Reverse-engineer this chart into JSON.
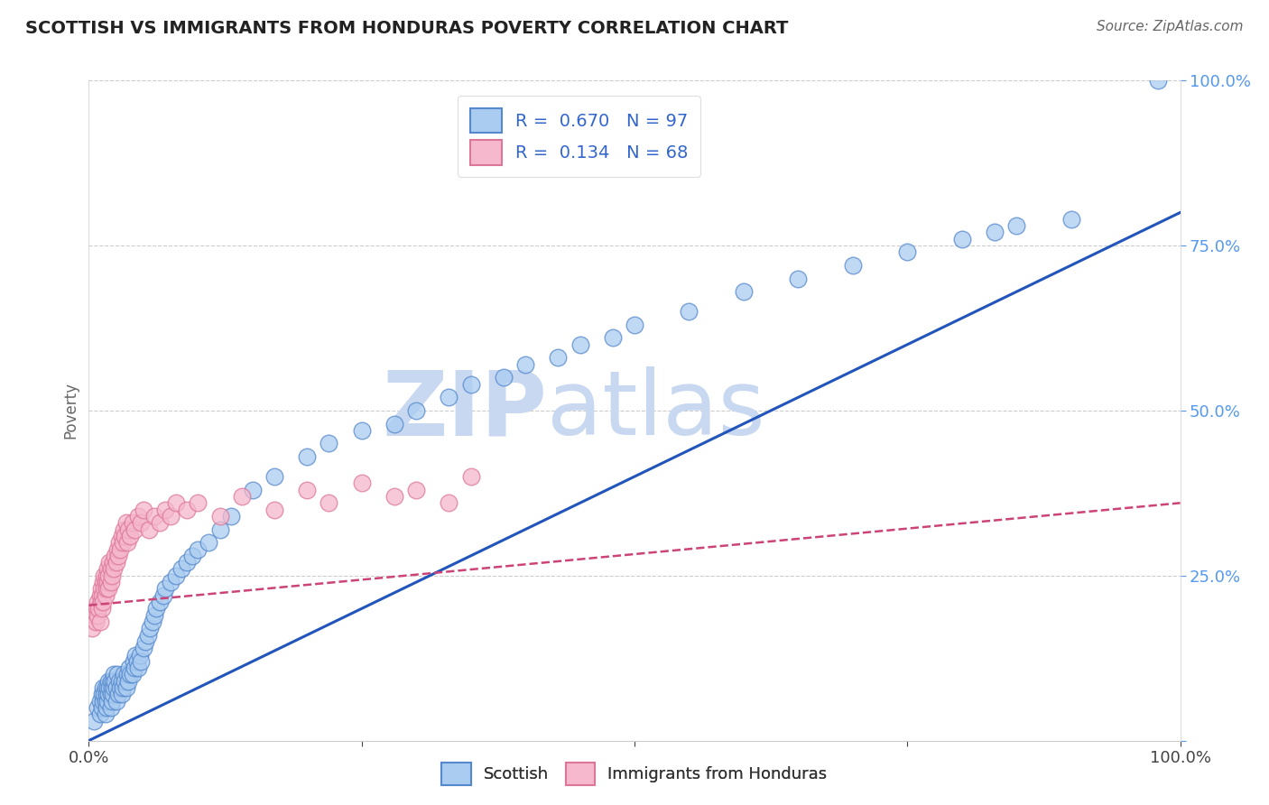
{
  "title": "SCOTTISH VS IMMIGRANTS FROM HONDURAS POVERTY CORRELATION CHART",
  "source": "Source: ZipAtlas.com",
  "ylabel": "Poverty",
  "xlim": [
    0,
    1
  ],
  "ylim": [
    0,
    1
  ],
  "scottish_R": 0.67,
  "scottish_N": 97,
  "honduras_R": 0.134,
  "honduras_N": 68,
  "scottish_color": "#aaccf0",
  "scottish_edge_color": "#5588cc",
  "scottish_line_color": "#2255bb",
  "honduras_color": "#f5b8cc",
  "honduras_edge_color": "#dd7799",
  "honduras_line_color": "#cc4477",
  "background_color": "#ffffff",
  "grid_color": "#cccccc",
  "watermark_color": "#c8d8f0",
  "scottish_line_x0": 0.0,
  "scottish_line_y0": 0.0,
  "scottish_line_x1": 1.0,
  "scottish_line_y1": 0.8,
  "honduras_line_x0": 0.0,
  "honduras_line_y0": 0.205,
  "honduras_line_x1": 1.0,
  "honduras_line_y1": 0.36,
  "scottish_x": [
    0.005,
    0.008,
    0.01,
    0.01,
    0.012,
    0.012,
    0.013,
    0.013,
    0.014,
    0.015,
    0.015,
    0.015,
    0.016,
    0.016,
    0.017,
    0.017,
    0.018,
    0.018,
    0.019,
    0.02,
    0.02,
    0.02,
    0.021,
    0.021,
    0.022,
    0.022,
    0.023,
    0.023,
    0.024,
    0.025,
    0.025,
    0.026,
    0.027,
    0.028,
    0.029,
    0.03,
    0.03,
    0.031,
    0.032,
    0.033,
    0.034,
    0.035,
    0.036,
    0.037,
    0.038,
    0.04,
    0.041,
    0.042,
    0.043,
    0.044,
    0.045,
    0.047,
    0.048,
    0.05,
    0.052,
    0.054,
    0.056,
    0.058,
    0.06,
    0.062,
    0.065,
    0.068,
    0.07,
    0.075,
    0.08,
    0.085,
    0.09,
    0.095,
    0.1,
    0.11,
    0.12,
    0.13,
    0.15,
    0.17,
    0.2,
    0.22,
    0.25,
    0.28,
    0.3,
    0.33,
    0.35,
    0.38,
    0.4,
    0.43,
    0.45,
    0.48,
    0.5,
    0.55,
    0.6,
    0.65,
    0.7,
    0.75,
    0.8,
    0.83,
    0.85,
    0.9,
    0.98
  ],
  "scottish_y": [
    0.03,
    0.05,
    0.04,
    0.06,
    0.05,
    0.07,
    0.06,
    0.08,
    0.07,
    0.04,
    0.06,
    0.08,
    0.05,
    0.07,
    0.06,
    0.08,
    0.07,
    0.09,
    0.08,
    0.05,
    0.07,
    0.09,
    0.06,
    0.08,
    0.07,
    0.09,
    0.08,
    0.1,
    0.09,
    0.06,
    0.08,
    0.1,
    0.07,
    0.09,
    0.08,
    0.07,
    0.09,
    0.08,
    0.1,
    0.09,
    0.08,
    0.1,
    0.09,
    0.11,
    0.1,
    0.1,
    0.12,
    0.11,
    0.13,
    0.12,
    0.11,
    0.13,
    0.12,
    0.14,
    0.15,
    0.16,
    0.17,
    0.18,
    0.19,
    0.2,
    0.21,
    0.22,
    0.23,
    0.24,
    0.25,
    0.26,
    0.27,
    0.28,
    0.29,
    0.3,
    0.32,
    0.34,
    0.38,
    0.4,
    0.43,
    0.45,
    0.47,
    0.48,
    0.5,
    0.52,
    0.54,
    0.55,
    0.57,
    0.58,
    0.6,
    0.61,
    0.63,
    0.65,
    0.68,
    0.7,
    0.72,
    0.74,
    0.76,
    0.77,
    0.78,
    0.79,
    1.0
  ],
  "honduras_x": [
    0.003,
    0.005,
    0.006,
    0.007,
    0.008,
    0.008,
    0.009,
    0.01,
    0.01,
    0.011,
    0.011,
    0.012,
    0.012,
    0.013,
    0.013,
    0.014,
    0.014,
    0.015,
    0.015,
    0.016,
    0.016,
    0.017,
    0.017,
    0.018,
    0.018,
    0.019,
    0.02,
    0.02,
    0.021,
    0.022,
    0.023,
    0.024,
    0.025,
    0.026,
    0.027,
    0.028,
    0.029,
    0.03,
    0.031,
    0.032,
    0.033,
    0.034,
    0.035,
    0.036,
    0.038,
    0.04,
    0.042,
    0.045,
    0.048,
    0.05,
    0.055,
    0.06,
    0.065,
    0.07,
    0.075,
    0.08,
    0.09,
    0.1,
    0.12,
    0.14,
    0.17,
    0.2,
    0.22,
    0.25,
    0.28,
    0.3,
    0.33,
    0.35
  ],
  "honduras_y": [
    0.17,
    0.19,
    0.18,
    0.2,
    0.19,
    0.21,
    0.2,
    0.22,
    0.18,
    0.21,
    0.23,
    0.2,
    0.22,
    0.24,
    0.21,
    0.23,
    0.25,
    0.22,
    0.24,
    0.23,
    0.25,
    0.24,
    0.26,
    0.23,
    0.25,
    0.27,
    0.24,
    0.26,
    0.25,
    0.27,
    0.26,
    0.28,
    0.27,
    0.29,
    0.28,
    0.3,
    0.29,
    0.31,
    0.3,
    0.32,
    0.31,
    0.33,
    0.3,
    0.32,
    0.31,
    0.33,
    0.32,
    0.34,
    0.33,
    0.35,
    0.32,
    0.34,
    0.33,
    0.35,
    0.34,
    0.36,
    0.35,
    0.36,
    0.34,
    0.37,
    0.35,
    0.38,
    0.36,
    0.39,
    0.37,
    0.38,
    0.36,
    0.4
  ]
}
